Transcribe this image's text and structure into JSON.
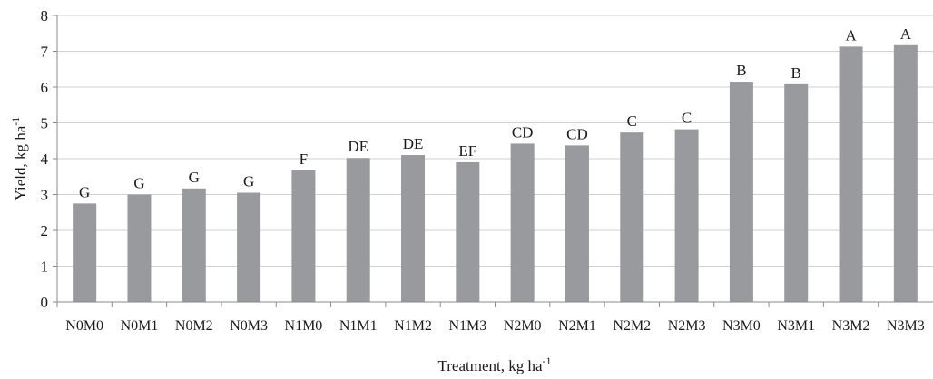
{
  "chart_data": {
    "type": "bar",
    "categories": [
      "N0M0",
      "N0M1",
      "N0M2",
      "N0M3",
      "N1M0",
      "N1M1",
      "N1M2",
      "N1M3",
      "N2M0",
      "N2M1",
      "N2M2",
      "N2M3",
      "N3M0",
      "N3M1",
      "N3M2",
      "N3M3"
    ],
    "values": [
      2.75,
      3.0,
      3.17,
      3.05,
      3.67,
      4.02,
      4.1,
      3.9,
      4.42,
      4.37,
      4.73,
      4.82,
      6.15,
      6.08,
      7.13,
      7.17
    ],
    "labels": [
      "G",
      "G",
      "G",
      "G",
      "F",
      "DE",
      "DE",
      "EF",
      "CD",
      "CD",
      "C",
      "C",
      "B",
      "B",
      "A",
      "A"
    ],
    "ylim": [
      0,
      8
    ],
    "yticks": [
      "0",
      "1",
      "2",
      "3",
      "4",
      "5",
      "6",
      "7",
      "8"
    ],
    "ylabel": "Yield, kg ha",
    "ylabel_sup": "-1",
    "xlabel": "Treatment, kg ha",
    "xlabel_sup": "-1",
    "grid": true,
    "colors": {
      "bar": "#999a9e",
      "grid": "#d0d0d0",
      "axis": "#8a8a8a"
    }
  }
}
